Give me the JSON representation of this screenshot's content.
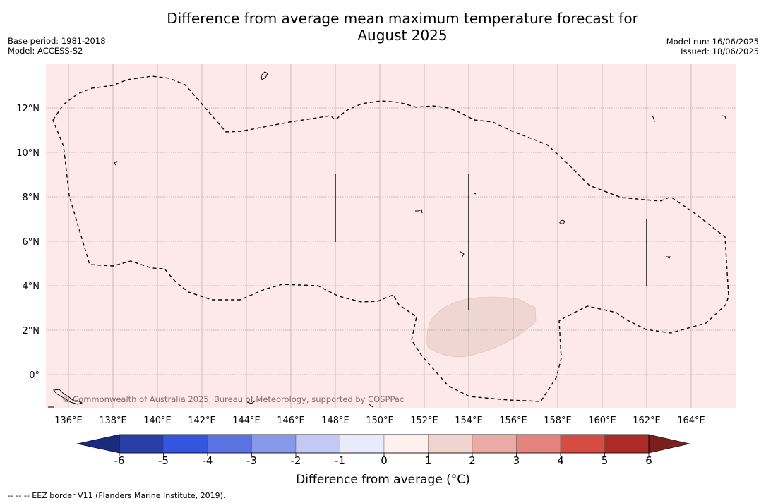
{
  "header": {
    "title_line1": "Difference from average mean maximum temperature forecast for",
    "title_line2": "August 2025",
    "base_period": "Base period: 1981-2018",
    "model": "Model: ACCESS-S2",
    "model_run": "Model run: 16/06/2025",
    "issued": "Issued: 18/06/2025"
  },
  "map": {
    "lon_ticks": [
      "136°E",
      "138°E",
      "140°E",
      "142°E",
      "144°E",
      "146°E",
      "148°E",
      "150°E",
      "152°E",
      "154°E",
      "156°E",
      "158°E",
      "160°E",
      "162°E",
      "164°E"
    ],
    "lat_ticks": [
      "12°N",
      "10°N",
      "8°N",
      "6°N",
      "4°N",
      "2°N",
      "0°"
    ],
    "background_category": "0 to 1",
    "background_color": "#fce9e8",
    "anomaly_patch_category": "1 to 2",
    "anomaly_patch_color": "#efd6d3",
    "copyright": "© Commonwealth of Australia 2025, Bureau of Meteorology, supported by COSPPac"
  },
  "colorbar": {
    "title": "Difference from average (°C)",
    "ticks": [
      "-6",
      "-5",
      "-4",
      "-3",
      "-2",
      "-1",
      "0",
      "1",
      "2",
      "3",
      "4",
      "5",
      "6"
    ],
    "colors": [
      "#2a3ea8",
      "#3355e0",
      "#5a73e2",
      "#8898ea",
      "#c2c9f4",
      "#e9ebfb",
      "#fdf0ee",
      "#f0d4d0",
      "#ecaaa4",
      "#e4847c",
      "#d64c42",
      "#ac2b26"
    ],
    "under_color": "#1a2a7c",
    "over_color": "#7a1f1b"
  },
  "footnote": "--  --  -- EEZ border V11 (Flanders Marine Institute, 2019)."
}
